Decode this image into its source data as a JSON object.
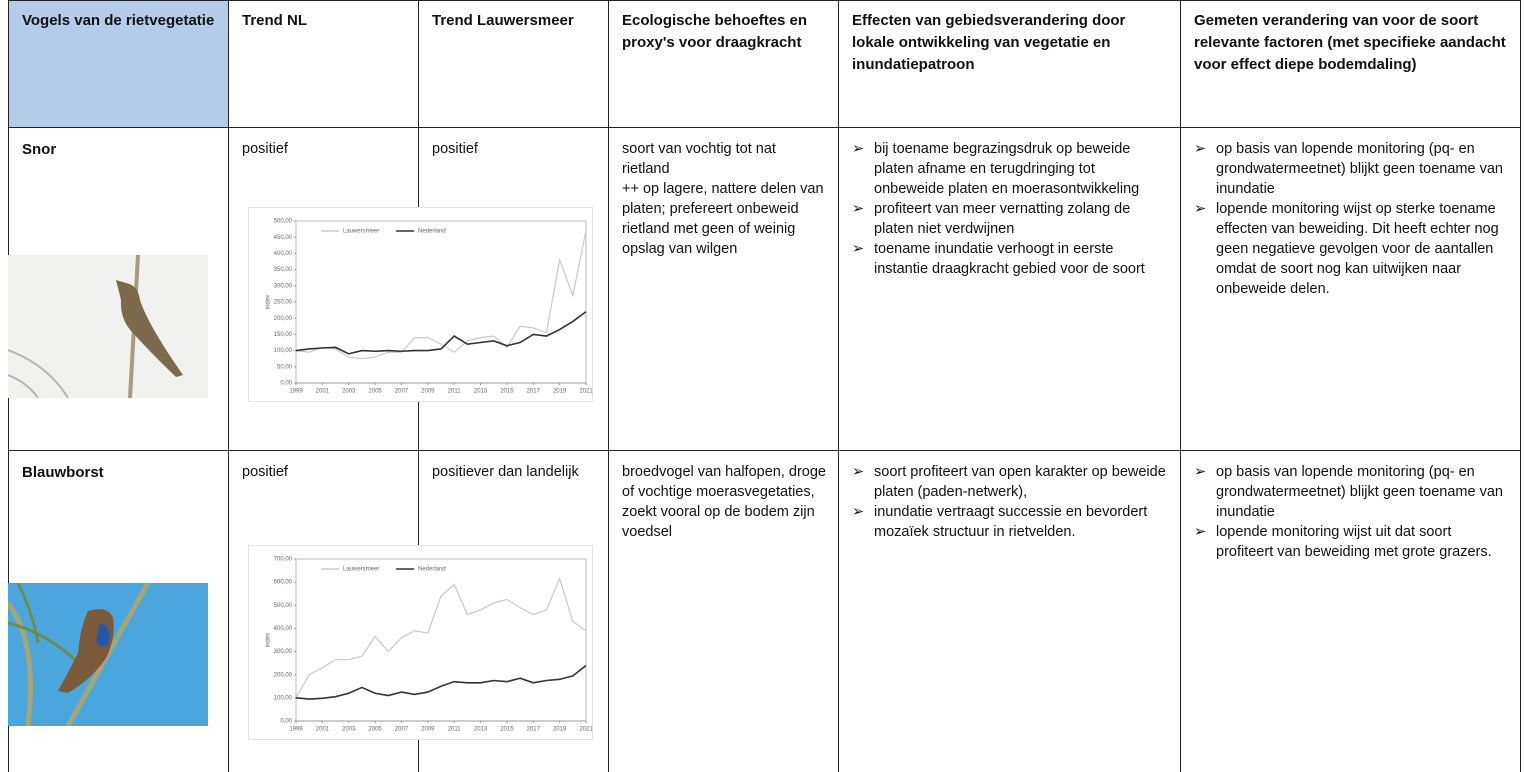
{
  "table": {
    "header": [
      "Vogels van de rietvegetatie",
      "Trend NL",
      "Trend Lauwersmeer",
      "Ecologische behoeftes en proxy's voor draagkracht",
      "Effecten van gebiedsverandering door lokale ontwikkeling van vegetatie en inundatiepatroon",
      "Gemeten verandering van voor de soort relevante factoren (met specifieke aandacht voor effect diepe bodemdaling)"
    ],
    "rows": [
      {
        "name": "Snor",
        "trend_nl": "positief",
        "trend_lauwersmeer": "positief",
        "ecology": [
          "soort van vochtig tot nat rietland",
          "++ op lagere, nattere delen van platen; prefereert onbeweid rietland met geen of weinig opslag van wilgen"
        ],
        "effects": [
          "bij toename begrazingsdruk op beweide platen afname en terugdringing tot onbeweide platen en moerasontwikkeling",
          "profiteert van meer vernatting zolang de platen niet verdwijnen",
          "toename inundatie verhoogt in eerste instantie draagkracht gebied voor de soort"
        ],
        "measured": [
          "op basis van lopende monitoring (pq- en grondwatermeetnet) blijkt geen toename van inundatie",
          "lopende monitoring wijst op sterke toename effecten van beweiding. Dit heeft echter nog geen negatieve gevolgen voor de aantallen omdat de soort nog kan uitwijken naar onbeweide delen."
        ],
        "chart": {
          "type": "line",
          "ylabel": "index",
          "x": [
            1999,
            2000,
            2001,
            2002,
            2003,
            2004,
            2005,
            2006,
            2007,
            2008,
            2009,
            2010,
            2011,
            2012,
            2013,
            2014,
            2015,
            2016,
            2017,
            2018,
            2019,
            2020,
            2021
          ],
          "xlim": [
            1999,
            2021
          ],
          "xticks": [
            1999,
            2001,
            2003,
            2005,
            2007,
            2009,
            2011,
            2013,
            2015,
            2017,
            2019,
            2021
          ],
          "ylim": [
            0,
            500
          ],
          "yticks": [
            {
              "value": 0,
              "label": "0,00"
            },
            {
              "value": 50,
              "label": "50,00"
            },
            {
              "value": 100,
              "label": "100,00"
            },
            {
              "value": 150,
              "label": "150,00"
            },
            {
              "value": 200,
              "label": "200,00"
            },
            {
              "value": 250,
              "label": "250,00"
            },
            {
              "value": 300,
              "label": "300,00"
            },
            {
              "value": 350,
              "label": "350,00"
            },
            {
              "value": 400,
              "label": "400,00"
            },
            {
              "value": 450,
              "label": "450,00"
            },
            {
              "value": 500,
              "label": "500,00"
            }
          ],
          "series": [
            {
              "name": "Lauwersmeer",
              "color": "#c8c8c8",
              "values": [
                100,
                95,
                110,
                105,
                80,
                75,
                80,
                95,
                95,
                140,
                140,
                120,
                95,
                130,
                140,
                145,
                110,
                175,
                170,
                155,
                380,
                270,
                470
              ]
            },
            {
              "name": "Nederland",
              "color": "#333333",
              "values": [
                100,
                105,
                108,
                110,
                90,
                100,
                98,
                100,
                98,
                100,
                100,
                105,
                145,
                120,
                125,
                130,
                115,
                125,
                150,
                145,
                165,
                190,
                220
              ]
            }
          ]
        }
      },
      {
        "name": "Blauwborst",
        "trend_nl": "positief",
        "trend_lauwersmeer": "positiever dan landelijk",
        "ecology": [
          "broedvogel van halfopen, droge of vochtige moerasvegetaties, zoekt vooral op de bodem zijn voedsel"
        ],
        "effects": [
          "soort profiteert van open karakter op beweide platen (paden-netwerk),",
          "inundatie vertraagt successie en bevordert mozaïek structuur in rietvelden."
        ],
        "measured": [
          "op basis van lopende monitoring (pq- en grondwatermeetnet) blijkt geen toename van inundatie",
          "lopende monitoring wijst uit dat soort profiteert van beweiding met grote grazers."
        ],
        "chart": {
          "type": "line",
          "ylabel": "index",
          "x": [
            1999,
            2000,
            2001,
            2002,
            2003,
            2004,
            2005,
            2006,
            2007,
            2008,
            2009,
            2010,
            2011,
            2012,
            2013,
            2014,
            2015,
            2016,
            2017,
            2018,
            2019,
            2020,
            2021
          ],
          "xlim": [
            1999,
            2021
          ],
          "xticks": [
            1999,
            2001,
            2003,
            2005,
            2007,
            2009,
            2011,
            2013,
            2015,
            2017,
            2019,
            2021
          ],
          "ylim": [
            0,
            700
          ],
          "yticks": [
            {
              "value": 0,
              "label": "0,00"
            },
            {
              "value": 100,
              "label": "100,00"
            },
            {
              "value": 200,
              "label": "200,00"
            },
            {
              "value": 300,
              "label": "300,00"
            },
            {
              "value": 400,
              "label": "400,00"
            },
            {
              "value": 500,
              "label": "500,00"
            },
            {
              "value": 600,
              "label": "600,00"
            },
            {
              "value": 700,
              "label": "700,00"
            }
          ],
          "series": [
            {
              "name": "Lauwersmeer",
              "color": "#c8c8c8",
              "values": [
                100,
                200,
                230,
                265,
                265,
                280,
                365,
                300,
                360,
                390,
                380,
                540,
                590,
                460,
                480,
                510,
                525,
                490,
                460,
                480,
                615,
                430,
                390
              ]
            },
            {
              "name": "Nederland",
              "color": "#333333",
              "values": [
                100,
                95,
                98,
                105,
                120,
                145,
                120,
                110,
                125,
                115,
                125,
                150,
                170,
                165,
                165,
                175,
                170,
                185,
                165,
                175,
                180,
                195,
                240
              ]
            }
          ]
        }
      }
    ]
  }
}
